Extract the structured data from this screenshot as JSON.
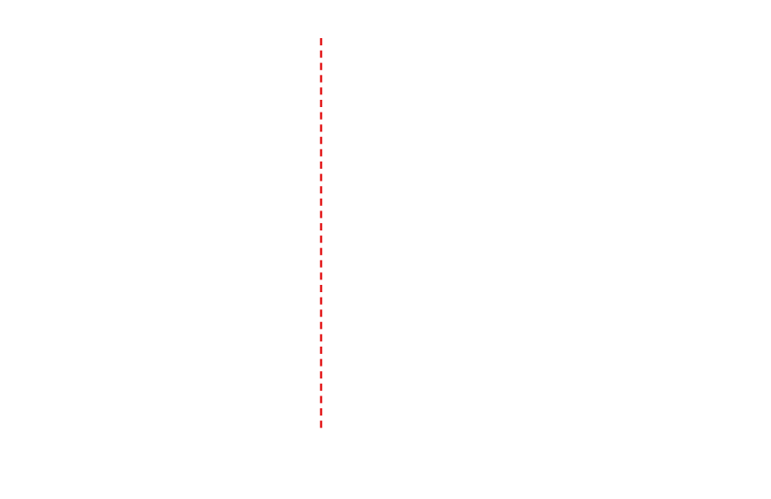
{
  "chart_data": {
    "type": "vline",
    "color": "#e31a1c",
    "linestyle": "dashed"
  }
}
